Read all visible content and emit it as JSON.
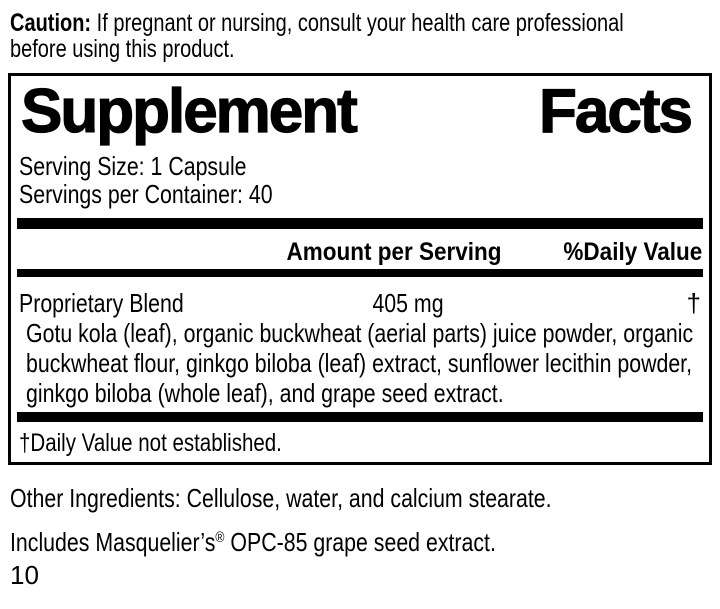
{
  "colors": {
    "text": "#000000",
    "background": "#ffffff"
  },
  "caution": {
    "label": "Caution:",
    "line1": "If pregnant or nursing, consult your health care professional",
    "line2": "before using this product."
  },
  "panel": {
    "title_left": "Supplement",
    "title_right": "Facts",
    "serving_size": "Serving Size: 1 Capsule",
    "servings_per_container": "Servings per Container: 40",
    "header": {
      "amount": "Amount per Serving",
      "daily_value": "%Daily Value"
    },
    "blend": {
      "name": "Proprietary Blend",
      "amount": "405 mg",
      "daily_value": "†",
      "description_lines": [
        "Gotu kola (leaf), organic buckwheat (aerial parts) juice powder, organic",
        "buckwheat flour, ginkgo biloba (leaf) extract, sunflower lecithin powder,",
        "ginkgo biloba (whole leaf), and grape seed extract."
      ]
    },
    "footnote": "†Daily Value not established."
  },
  "other_ingredients": "Other Ingredients: Cellulose, water, and calcium stearate.",
  "includes": {
    "pre": "Includes Masquelier’s",
    "reg": "®",
    "post": " OPC-85 grape seed extract."
  },
  "page_number": "10"
}
